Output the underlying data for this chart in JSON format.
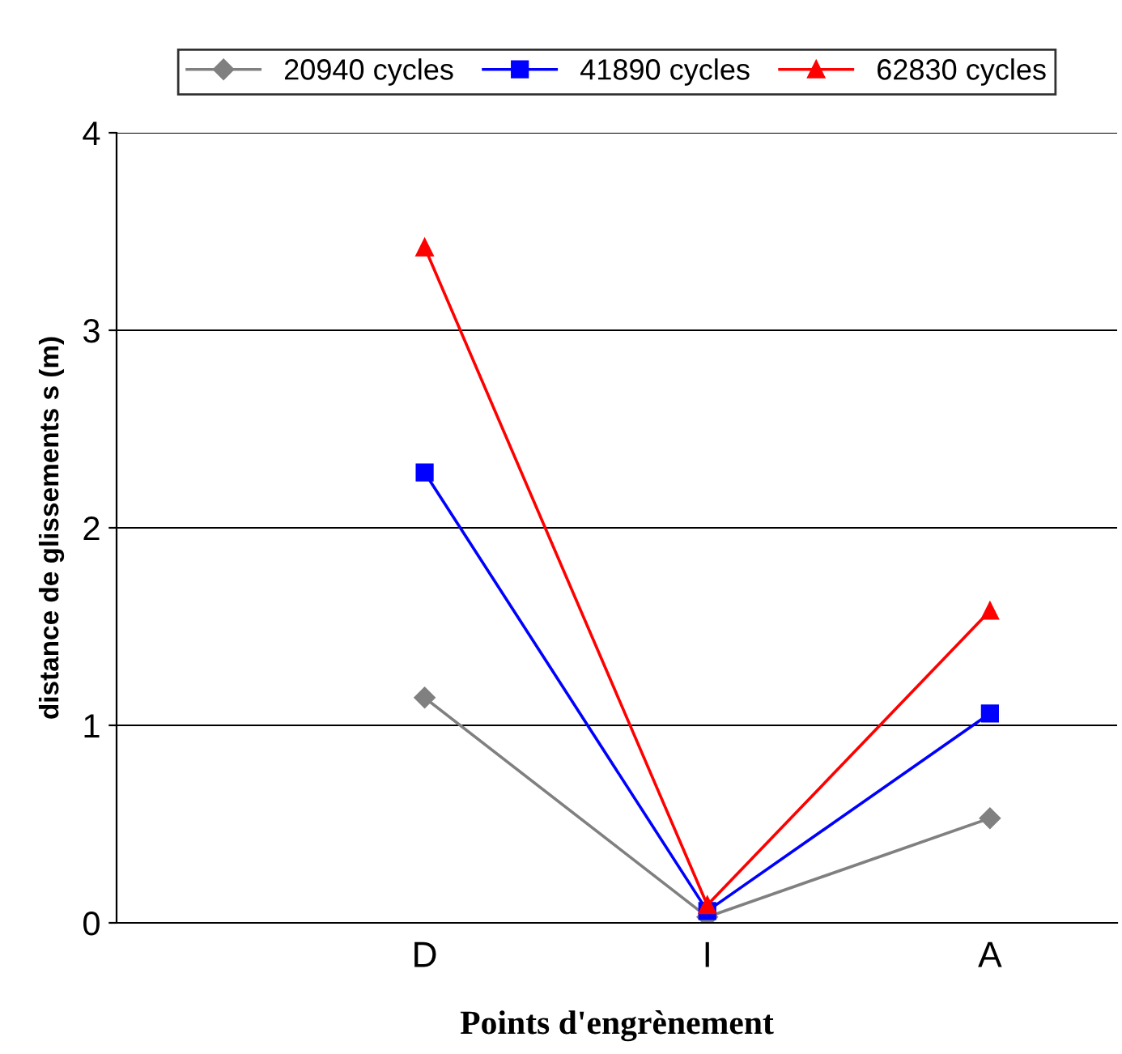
{
  "chart_data": {
    "type": "line",
    "xlabel": "Points d'engrènement",
    "ylabel": "distance de glissements s (m)",
    "categories": [
      "D",
      "I",
      "A"
    ],
    "series": [
      {
        "name": "20940 cycles",
        "color": "#808080",
        "marker": "diamond",
        "values": [
          1.14,
          0.03,
          0.53
        ]
      },
      {
        "name": "41890 cycles",
        "color": "#0000ff",
        "marker": "square",
        "values": [
          2.28,
          0.06,
          1.06
        ]
      },
      {
        "name": "62830 cycles",
        "color": "#ff0000",
        "marker": "triangle",
        "values": [
          3.42,
          0.09,
          1.58
        ]
      }
    ],
    "ylim": [
      0,
      4
    ],
    "yticks": [
      0,
      1,
      2,
      3,
      4
    ],
    "grid": "y",
    "legend": "top"
  }
}
